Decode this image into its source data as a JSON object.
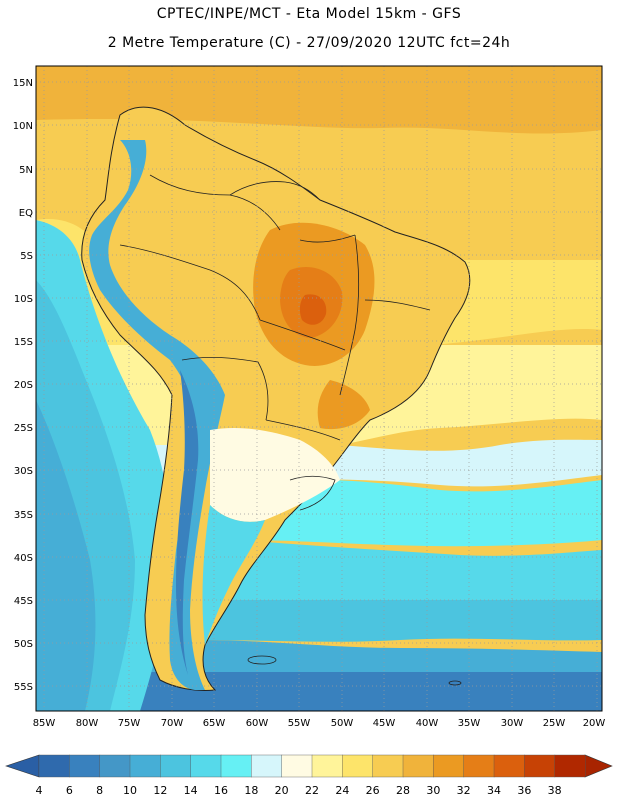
{
  "header": {
    "line1": "CPTEC/INPE/MCT -  Eta Model 15km - GFS",
    "line2": "2 Metre Temperature (C) - 27/09/2020 12UTC fct=24h"
  },
  "map": {
    "lat_labels": [
      "15N",
      "10N",
      "5N",
      "EQ",
      "5S",
      "10S",
      "15S",
      "20S",
      "25S",
      "30S",
      "35S",
      "40S",
      "45S",
      "50S",
      "55S"
    ],
    "lon_labels": [
      "85W",
      "80W",
      "75W",
      "70W",
      "65W",
      "60W",
      "55W",
      "50W",
      "45W",
      "40W",
      "35W",
      "30W",
      "25W",
      "20W"
    ],
    "grid": "dotted"
  },
  "colorbar": {
    "labels": [
      "4",
      "6",
      "8",
      "10",
      "12",
      "14",
      "16",
      "18",
      "20",
      "22",
      "24",
      "26",
      "28",
      "30",
      "32",
      "34",
      "36",
      "38"
    ],
    "colors": [
      "#2f6aad",
      "#3981be",
      "#4497c7",
      "#46aed6",
      "#4cc4df",
      "#56d9ea",
      "#66f0f4",
      "#d6f6fb",
      "#fffbe3",
      "#fff49a",
      "#fde46a",
      "#f7cc52",
      "#f0b33b",
      "#eb9a22",
      "#e57e17",
      "#db600d",
      "#c74205",
      "#b02800"
    ],
    "left_arrow_color": "#2a5fa5",
    "right_arrow_color": "#a82400"
  }
}
